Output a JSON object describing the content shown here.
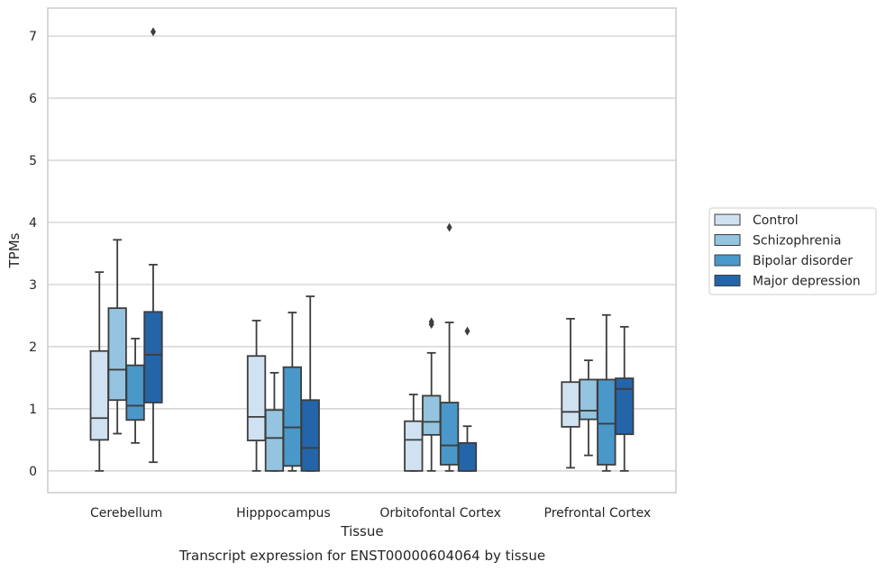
{
  "chart_data": {
    "type": "box",
    "caption": "Transcript expression for ENST00000604064 by tissue",
    "xlabel": "Tissue",
    "ylabel": "TPMs",
    "ylim": [
      -0.35,
      7.45
    ],
    "yticks": [
      "0",
      "1",
      "2",
      "3",
      "4",
      "5",
      "6",
      "7"
    ],
    "categories": [
      "Cerebellum",
      "Hipppocampus",
      "Orbitofontal Cortex",
      "Prefrontal Cortex"
    ],
    "grid": "horizontal",
    "legend_position": "right",
    "colors": [
      "#d0e1f2",
      "#94c4df",
      "#4a98c9",
      "#2464a9"
    ],
    "edge_color": "#3d3d3d",
    "series": [
      {
        "name": "Control",
        "boxes": [
          {
            "whislo": 0.0,
            "q1": 0.5,
            "med": 0.85,
            "q3": 1.93,
            "whishi": 3.2,
            "fliers": []
          },
          {
            "whislo": 0.0,
            "q1": 0.49,
            "med": 0.87,
            "q3": 1.85,
            "whishi": 2.42,
            "fliers": []
          },
          {
            "whislo": 0.0,
            "q1": 0.0,
            "med": 0.5,
            "q3": 0.8,
            "whishi": 1.23,
            "fliers": []
          },
          {
            "whislo": 0.05,
            "q1": 0.71,
            "med": 0.95,
            "q3": 1.43,
            "whishi": 2.45,
            "fliers": []
          }
        ]
      },
      {
        "name": "Schizophrenia",
        "boxes": [
          {
            "whislo": 0.6,
            "q1": 1.14,
            "med": 1.63,
            "q3": 2.62,
            "whishi": 3.72,
            "fliers": []
          },
          {
            "whislo": 0.0,
            "q1": 0.0,
            "med": 0.53,
            "q3": 0.98,
            "whishi": 1.58,
            "fliers": []
          },
          {
            "whislo": 0.0,
            "q1": 0.58,
            "med": 0.79,
            "q3": 1.21,
            "whishi": 1.9,
            "fliers": [
              2.36,
              2.4
            ]
          },
          {
            "whislo": 0.25,
            "q1": 0.83,
            "med": 0.97,
            "q3": 1.47,
            "whishi": 1.78,
            "fliers": []
          }
        ]
      },
      {
        "name": "Bipolar disorder",
        "boxes": [
          {
            "whislo": 0.45,
            "q1": 0.82,
            "med": 1.05,
            "q3": 1.7,
            "whishi": 2.13,
            "fliers": []
          },
          {
            "whislo": 0.0,
            "q1": 0.08,
            "med": 0.7,
            "q3": 1.67,
            "whishi": 2.55,
            "fliers": []
          },
          {
            "whislo": 0.0,
            "q1": 0.1,
            "med": 0.41,
            "q3": 1.1,
            "whishi": 2.39,
            "fliers": [
              3.92
            ]
          },
          {
            "whislo": 0.0,
            "q1": 0.1,
            "med": 0.76,
            "q3": 1.47,
            "whishi": 2.51,
            "fliers": []
          }
        ]
      },
      {
        "name": "Major depression",
        "boxes": [
          {
            "whislo": 0.14,
            "q1": 1.1,
            "med": 1.87,
            "q3": 2.56,
            "whishi": 3.32,
            "fliers": [
              7.07
            ]
          },
          {
            "whislo": 0.0,
            "q1": 0.0,
            "med": 0.37,
            "q3": 1.14,
            "whishi": 2.81,
            "fliers": []
          },
          {
            "whislo": 0.0,
            "q1": 0.0,
            "med": 0.0,
            "q3": 0.45,
            "whishi": 0.72,
            "fliers": [
              2.25
            ]
          },
          {
            "whislo": 0.0,
            "q1": 0.59,
            "med": 1.32,
            "q3": 1.49,
            "whishi": 2.32,
            "fliers": []
          }
        ]
      }
    ]
  }
}
